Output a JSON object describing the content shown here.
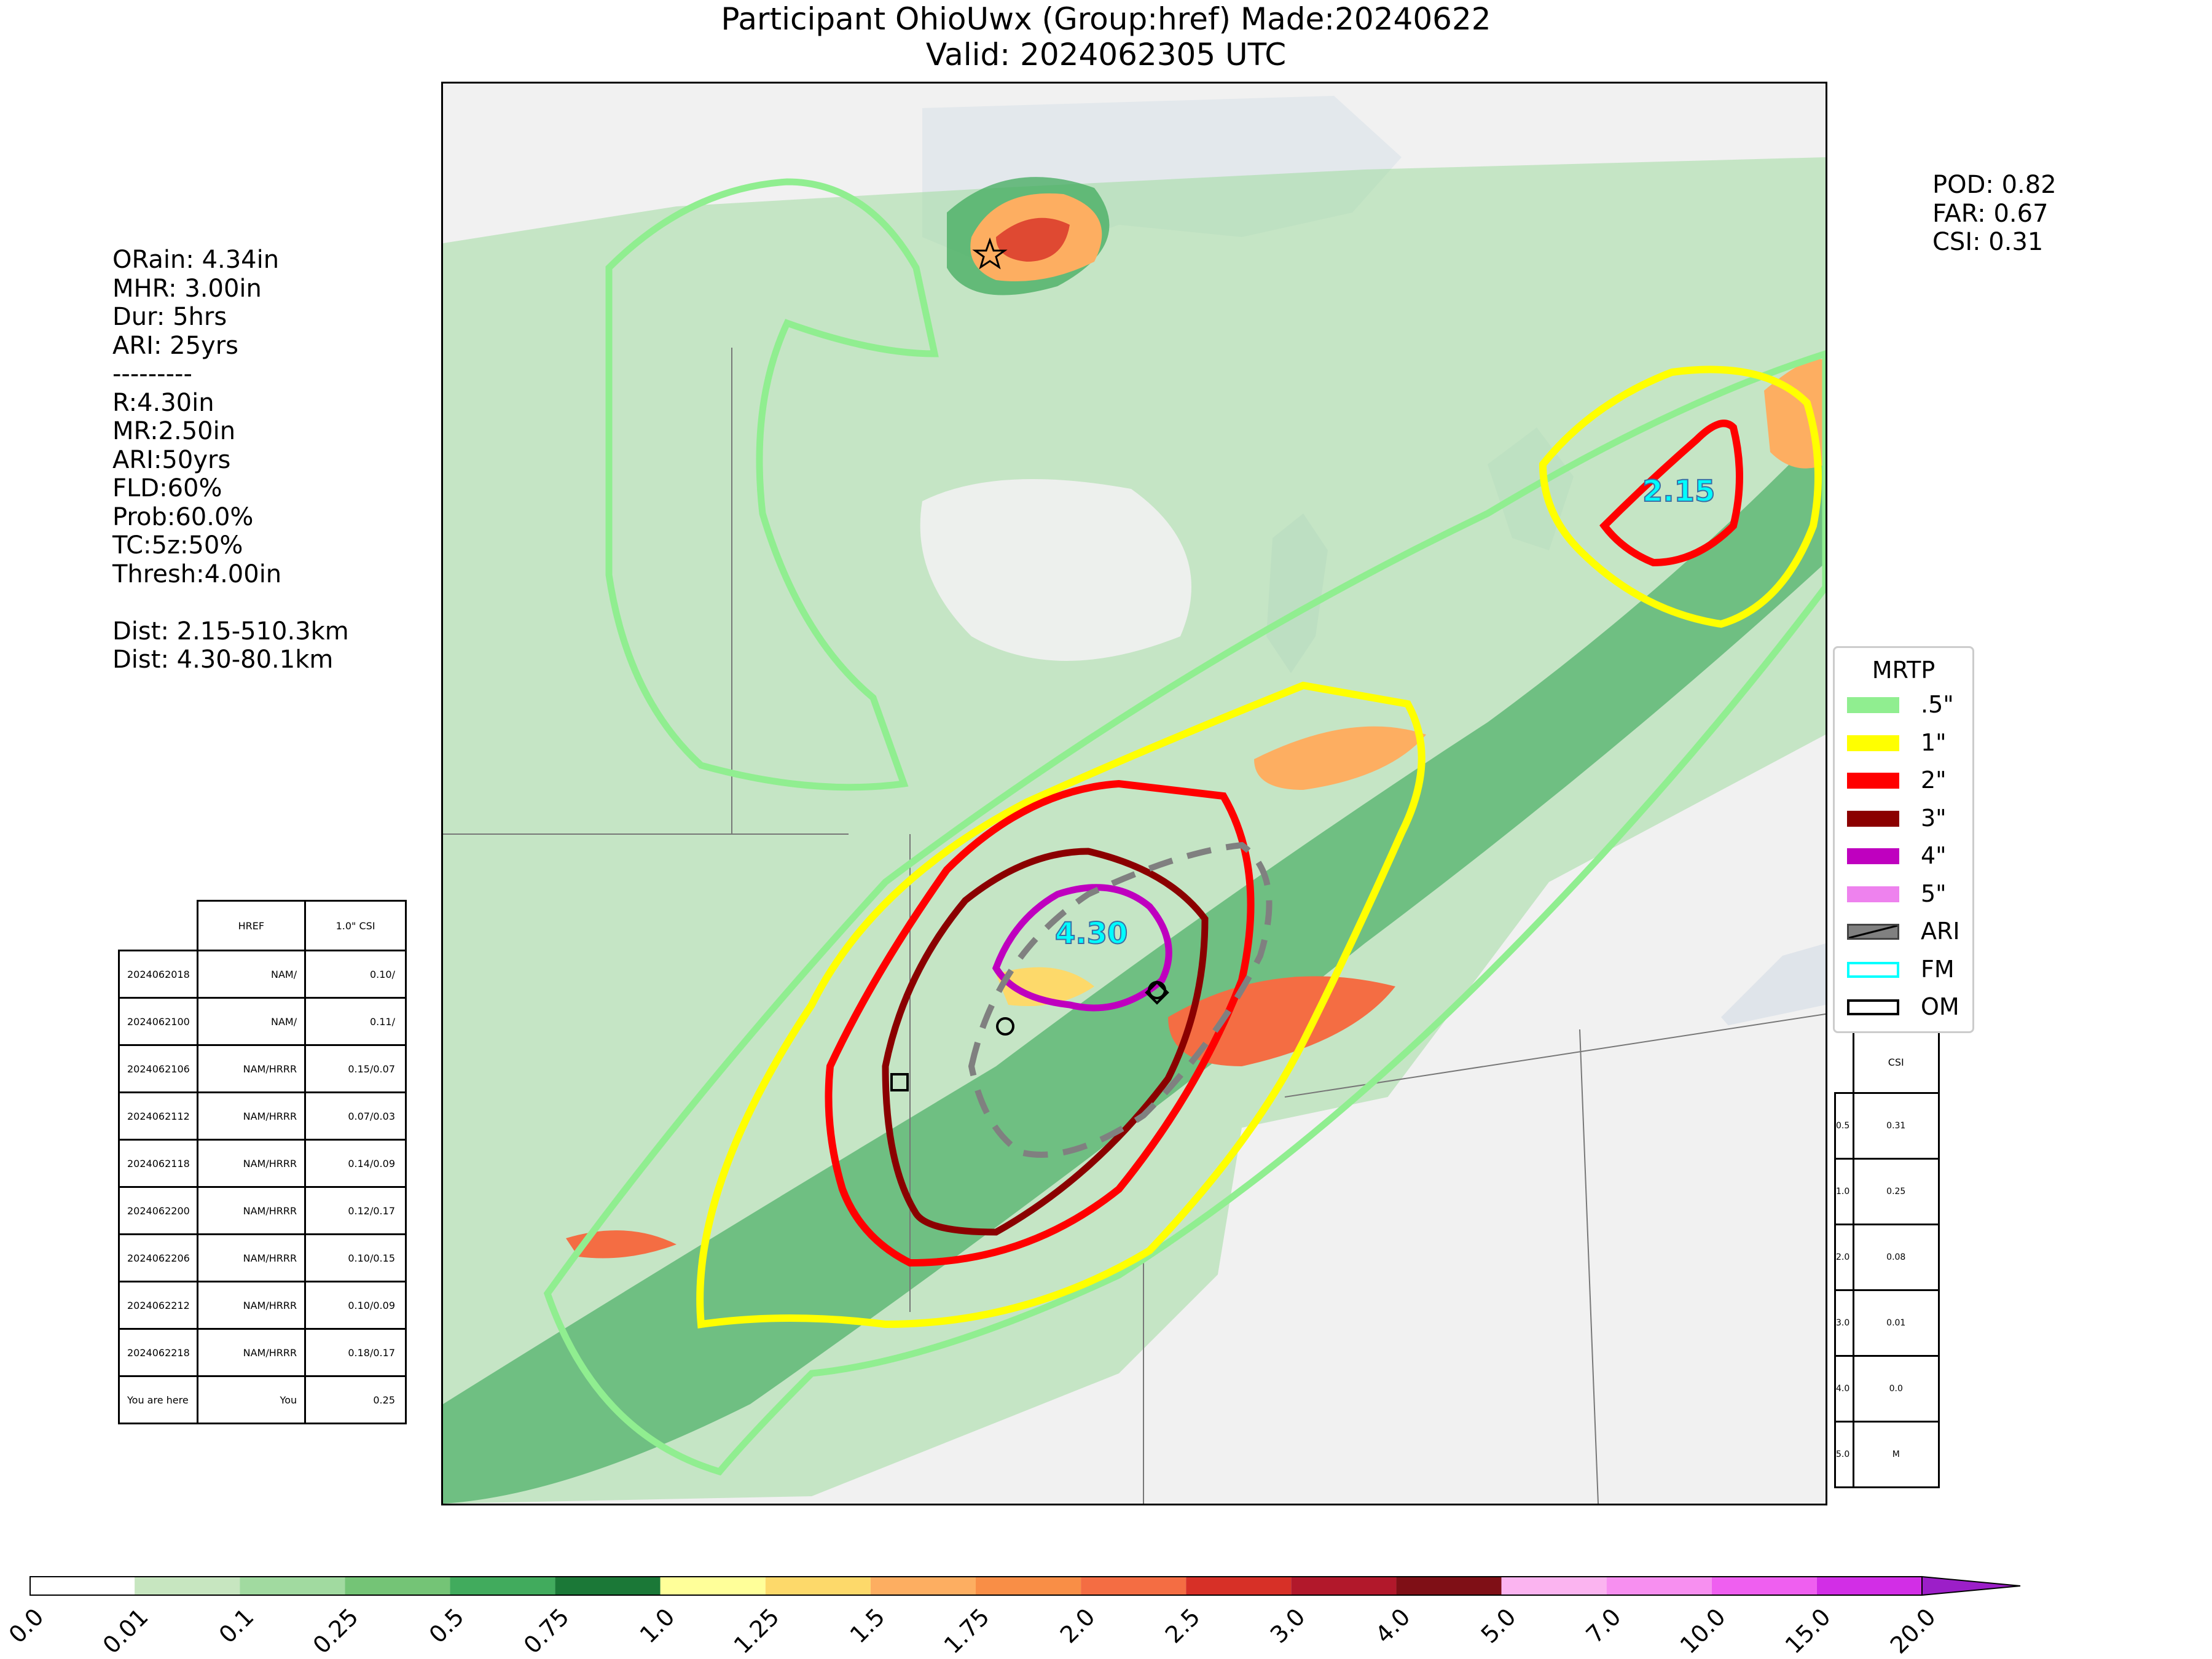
{
  "header": {
    "title_line1": "Participant OhioUwx (Group:href) Made:20240622",
    "title_line2": "Valid: 2024062305 UTC"
  },
  "left_stats": {
    "lines": [
      "ORain: 4.34in",
      "MHR: 3.00in",
      "Dur: 5hrs",
      "ARI: 25yrs",
      "---------",
      "R:4.30in",
      "MR:2.50in",
      "ARI:50yrs",
      "FLD:60%",
      "Prob:60.0%",
      "TC:5z:50%",
      "Thresh:4.00in",
      "",
      "Dist: 2.15-510.3km",
      "Dist: 4.30-80.1km"
    ]
  },
  "right_stats": {
    "lines": [
      "POD: 0.82",
      "FAR: 0.67",
      "CSI: 0.31"
    ]
  },
  "map": {
    "labels": {
      "small_max": "2.15",
      "large_max": "4.30"
    },
    "contour_colors": {
      "half": "#90ee90",
      "one": "#ffff00",
      "two": "#ff0000",
      "three": "#8b0000",
      "four": "#bf00bf",
      "ari": "#808080"
    }
  },
  "history_table": {
    "headers": [
      "",
      "HREF",
      "1.0\" CSI"
    ],
    "rows": [
      [
        "2024062018",
        "NAM/",
        "0.10/"
      ],
      [
        "2024062100",
        "NAM/",
        "0.11/"
      ],
      [
        "2024062106",
        "NAM/HRRR",
        "0.15/0.07"
      ],
      [
        "2024062112",
        "NAM/HRRR",
        "0.07/0.03"
      ],
      [
        "2024062118",
        "NAM/HRRR",
        "0.14/0.09"
      ],
      [
        "2024062200",
        "NAM/HRRR",
        "0.12/0.17"
      ],
      [
        "2024062206",
        "NAM/HRRR",
        "0.10/0.15"
      ],
      [
        "2024062212",
        "NAM/HRRR",
        "0.10/0.09"
      ],
      [
        "2024062218",
        "NAM/HRRR",
        "0.18/0.17"
      ],
      [
        "You are here",
        "You",
        "0.25"
      ]
    ]
  },
  "csi_table": {
    "header": "CSI",
    "rows": [
      [
        "0.5",
        "0.31"
      ],
      [
        "1.0",
        "0.25"
      ],
      [
        "2.0",
        "0.08"
      ],
      [
        "3.0",
        "0.01"
      ],
      [
        "4.0",
        "0.0"
      ],
      [
        "5.0",
        "M"
      ]
    ]
  },
  "legend": {
    "title": "MRTP",
    "items": [
      {
        "label": ".5\"",
        "color": "#90ee90"
      },
      {
        "label": "1\"",
        "color": "#ffff00"
      },
      {
        "label": "2\"",
        "color": "#ff0000"
      },
      {
        "label": "3\"",
        "color": "#8b0000"
      },
      {
        "label": "4\"",
        "color": "#bf00bf"
      },
      {
        "label": "5\"",
        "color": "#ee82ee"
      },
      {
        "label": "ARI",
        "color": "#808080"
      },
      {
        "label": "FM",
        "color": "#00ffff"
      },
      {
        "label": "OM",
        "color": "#000000"
      }
    ]
  },
  "colorbar": {
    "ticks": [
      "0.0",
      "0.01",
      "0.1",
      "0.25",
      "0.5",
      "0.75",
      "1.0",
      "1.25",
      "1.5",
      "1.75",
      "2.0",
      "2.5",
      "3.0",
      "4.0",
      "5.0",
      "7.0",
      "10.0",
      "15.0",
      "20.0"
    ],
    "colors": [
      "#ffffff",
      "#c7e6c0",
      "#a1daa0",
      "#74c476",
      "#41ab5d",
      "#1b7837",
      "#ffff99",
      "#fdd96a",
      "#fdae61",
      "#f98e46",
      "#f46d43",
      "#d73027",
      "#b2182b",
      "#7f0f16",
      "#fbb4f0",
      "#f78ff0",
      "#ef5ff0",
      "#d22ee6",
      "#9c1fc8"
    ]
  }
}
